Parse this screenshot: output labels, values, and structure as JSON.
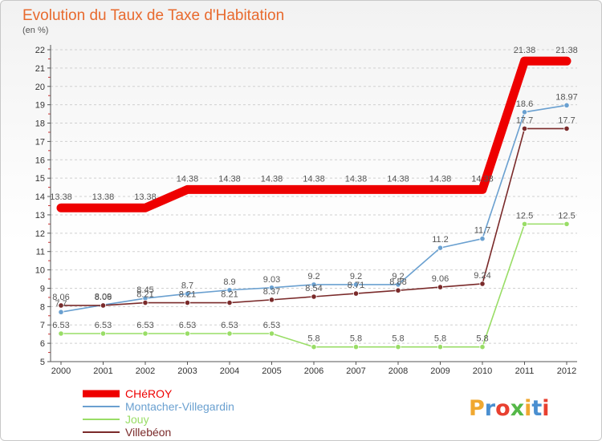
{
  "chart_data": {
    "type": "line",
    "title": "Evolution du Taux de Taxe d'Habitation",
    "subtitle": "(en %)",
    "x": [
      "2000",
      "2001",
      "2002",
      "2003",
      "2004",
      "2005",
      "2006",
      "2007",
      "2008",
      "2009",
      "2010",
      "2011",
      "2012"
    ],
    "ylim": [
      5,
      22
    ],
    "yticks": [
      "5",
      "6",
      "7",
      "8",
      "9",
      "10",
      "11",
      "12",
      "13",
      "14",
      "15",
      "16",
      "17",
      "18",
      "19",
      "20",
      "21",
      "22"
    ],
    "grid": "horizontal-dashed",
    "legend_position": "bottom-left",
    "series": [
      {
        "name": "CHéROY",
        "color": "#ee0000",
        "values": [
          13.38,
          13.38,
          13.38,
          14.38,
          14.38,
          14.38,
          14.38,
          14.38,
          14.38,
          14.38,
          14.38,
          21.38,
          21.38
        ],
        "labels": [
          "13.38",
          "13.38",
          "13.38",
          "14.38",
          "14.38",
          "14.38",
          "14.38",
          "14.38",
          "14.38",
          "14.38",
          "14.38",
          "21.38",
          "21.38"
        ]
      },
      {
        "name": "Montacher-Villegardin",
        "color": "#6aa0d0",
        "values": [
          7.7,
          8.09,
          8.45,
          8.7,
          8.9,
          9.03,
          9.2,
          9.2,
          9.2,
          11.2,
          11.7,
          18.6,
          18.97
        ],
        "labels": [
          "7.7",
          "8.09",
          "8.45",
          "8.7",
          "8.9",
          "9.03",
          "9.2",
          "9.2",
          "9.2",
          "11.2",
          "11.7",
          "18.6",
          "18.97"
        ]
      },
      {
        "name": "Jouy",
        "color": "#99dd66",
        "values": [
          6.53,
          6.53,
          6.53,
          6.53,
          6.53,
          6.53,
          5.8,
          5.8,
          5.8,
          5.8,
          5.8,
          12.5,
          12.5
        ],
        "labels": [
          "6.53",
          "6.53",
          "6.53",
          "6.53",
          "6.53",
          "6.53",
          "5.8",
          "5.8",
          "5.8",
          "5.8",
          "5.8",
          "12.5",
          "12.5"
        ]
      },
      {
        "name": "Villebéon",
        "color": "#7a2a2a",
        "values": [
          8.06,
          8.06,
          8.21,
          8.21,
          8.21,
          8.37,
          8.54,
          8.71,
          8.88,
          9.06,
          9.24,
          17.7,
          17.7
        ],
        "labels": [
          "8.06",
          "8.06",
          "8.21",
          "8.21",
          "8.21",
          "8.37",
          "8.54",
          "8.71",
          "8.88",
          "9.06",
          "9.24",
          "17.7",
          "17.7"
        ]
      }
    ]
  },
  "logo": {
    "letters": [
      "P",
      "r",
      "o",
      "x",
      "i",
      "t",
      "i"
    ],
    "colors": [
      "#f0a830",
      "#4a8fd0",
      "#e84030",
      "#55b848",
      "#f0a830",
      "#4a8fd0",
      "#e84030"
    ]
  }
}
